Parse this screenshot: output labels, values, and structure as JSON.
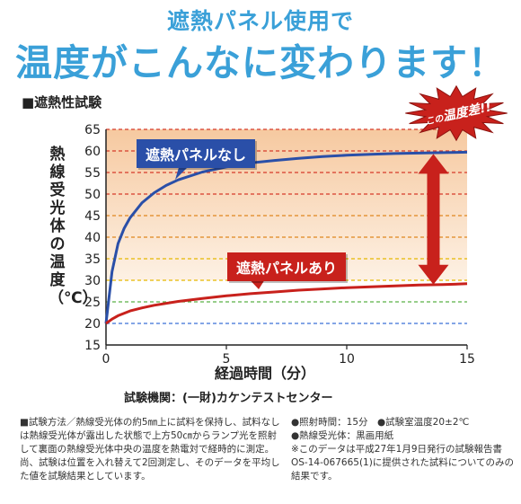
{
  "header": {
    "line1": "遮熱パネル使用で",
    "line2": "温度がこんなに変わります！"
  },
  "section_title": "■遮熱性試験",
  "burst": {
    "prefix": "この",
    "main": "温度差!!"
  },
  "source": "試験機関：(一財)カケンテストセンター",
  "notes_left": "■試験方法／熱線受光体の約5㎜上に試料を保持し、試料なしは熱線受光体が露出した状態で上方50㎝からランプ光を照射して裏面の熱線受光体中央の温度を熱電対で経時的に測定。尚、試験は位置を入れ替えて2回測定し、そのデータを平均した値を試験結果としています。",
  "notes_right": {
    "line1": "●照射時間：15分　●試験室温度20±2℃",
    "line2": "●熱線受光体：黒画用紙",
    "line3": "※このデータは平成27年1月9日発行の試験報告書OS-14-067665(1)に提供された試料についてのみの結果です。"
  },
  "colors": {
    "headline": "#3aa0d8",
    "blue_series": "#2a4fa8",
    "red_series": "#c8211c",
    "background_band": "#fbe6cf",
    "arrow": "#c8211c"
  },
  "chart_data": {
    "type": "line",
    "title": "",
    "xlabel": "経過時間（分）",
    "ylabel": "熱線受光体の温度（℃）",
    "xlim": [
      0,
      15
    ],
    "ylim": [
      15,
      65
    ],
    "xticks": [
      "0",
      "5",
      "10",
      "15"
    ],
    "yticks": [
      "15",
      "20",
      "25",
      "30",
      "35",
      "40",
      "45",
      "50",
      "55",
      "60",
      "65"
    ],
    "grid": true,
    "series": [
      {
        "name": "遮熱パネルなし",
        "x": [
          0,
          0.25,
          0.5,
          0.75,
          1,
          1.5,
          2,
          2.5,
          3,
          4,
          5,
          6,
          7,
          8,
          9,
          10,
          11,
          12,
          13,
          14,
          15
        ],
        "values": [
          20,
          32,
          38.5,
          42,
          44.5,
          48,
          50.3,
          52,
          53.3,
          55.1,
          56.3,
          57.2,
          57.8,
          58.3,
          58.7,
          59,
          59.2,
          59.4,
          59.5,
          59.6,
          59.7
        ]
      },
      {
        "name": "遮熱パネルあり",
        "x": [
          0,
          0.25,
          0.5,
          1,
          1.5,
          2,
          3,
          4,
          5,
          6,
          7,
          8,
          9,
          10,
          11,
          12,
          13,
          14,
          15
        ],
        "values": [
          20,
          21,
          21.8,
          22.9,
          23.6,
          24.2,
          25.1,
          25.8,
          26.4,
          26.9,
          27.3,
          27.7,
          28.0,
          28.3,
          28.5,
          28.7,
          28.9,
          29.0,
          29.2
        ]
      }
    ]
  }
}
